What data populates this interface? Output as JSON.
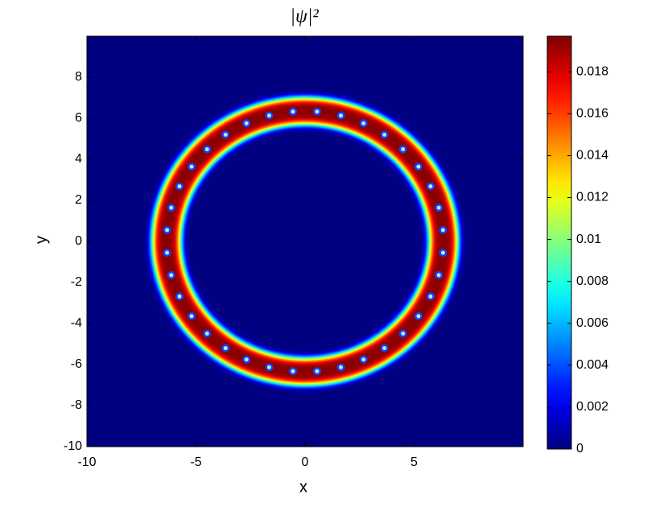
{
  "chart_data": {
    "type": "heatmap",
    "title": "|ψ|²",
    "xlabel": "x",
    "ylabel": "y",
    "xlim": [
      -10,
      10
    ],
    "ylim": [
      -10,
      10
    ],
    "xticks": [
      -10,
      -5,
      0,
      5
    ],
    "yticks": [
      -10,
      -8,
      -6,
      -4,
      -2,
      0,
      2,
      4,
      6,
      8
    ],
    "clim": [
      0,
      0.0197
    ],
    "cticks": [
      0,
      0.002,
      0.004,
      0.006,
      0.008,
      0.01,
      0.012,
      0.014,
      0.016,
      0.018
    ],
    "colormap": "jet",
    "ring": {
      "radius": 6.35,
      "width": 0.45,
      "peak": 0.0195,
      "vortex_radius": 6.35,
      "vortex_count": 36,
      "vortex_phase_deg": 5
    }
  }
}
